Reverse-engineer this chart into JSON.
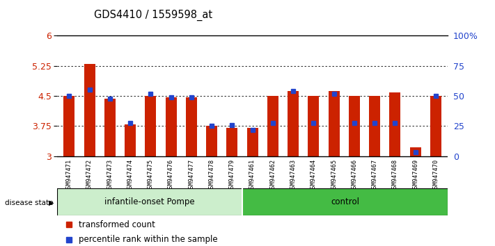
{
  "title": "GDS4410 / 1559598_at",
  "samples": [
    "GSM947471",
    "GSM947472",
    "GSM947473",
    "GSM947474",
    "GSM947475",
    "GSM947476",
    "GSM947477",
    "GSM947478",
    "GSM947479",
    "GSM947461",
    "GSM947462",
    "GSM947463",
    "GSM947464",
    "GSM947465",
    "GSM947466",
    "GSM947467",
    "GSM947468",
    "GSM947469",
    "GSM947470"
  ],
  "red_values": [
    4.5,
    5.3,
    4.43,
    3.8,
    4.5,
    4.47,
    4.47,
    3.76,
    3.7,
    3.7,
    4.5,
    4.62,
    4.5,
    4.63,
    4.5,
    4.5,
    4.58,
    3.22,
    4.5
  ],
  "blue_values": [
    4.5,
    4.65,
    4.43,
    3.82,
    4.55,
    4.47,
    4.47,
    3.76,
    3.77,
    3.65,
    3.82,
    4.62,
    3.82,
    4.55,
    3.82,
    3.82,
    3.82,
    3.1,
    4.5
  ],
  "group_labels": [
    "infantile-onset Pompe",
    "control"
  ],
  "group_sizes": [
    9,
    10
  ],
  "group_color_light": "#cceecc",
  "group_color_dark": "#44bb44",
  "ymin": 3.0,
  "ymax": 6.0,
  "yticks_left": [
    3.0,
    3.75,
    4.5,
    5.25,
    6.0
  ],
  "yticks_right_labels": [
    "0",
    "25",
    "50",
    "75",
    "100%"
  ],
  "yticks_right_vals": [
    0,
    25,
    50,
    75,
    100
  ],
  "bar_color": "#cc2200",
  "blue_color": "#2244cc",
  "tick_bg_color": "#cccccc",
  "legend_items": [
    "transformed count",
    "percentile rank within the sample"
  ],
  "legend_colors": [
    "#cc2200",
    "#2244cc"
  ]
}
